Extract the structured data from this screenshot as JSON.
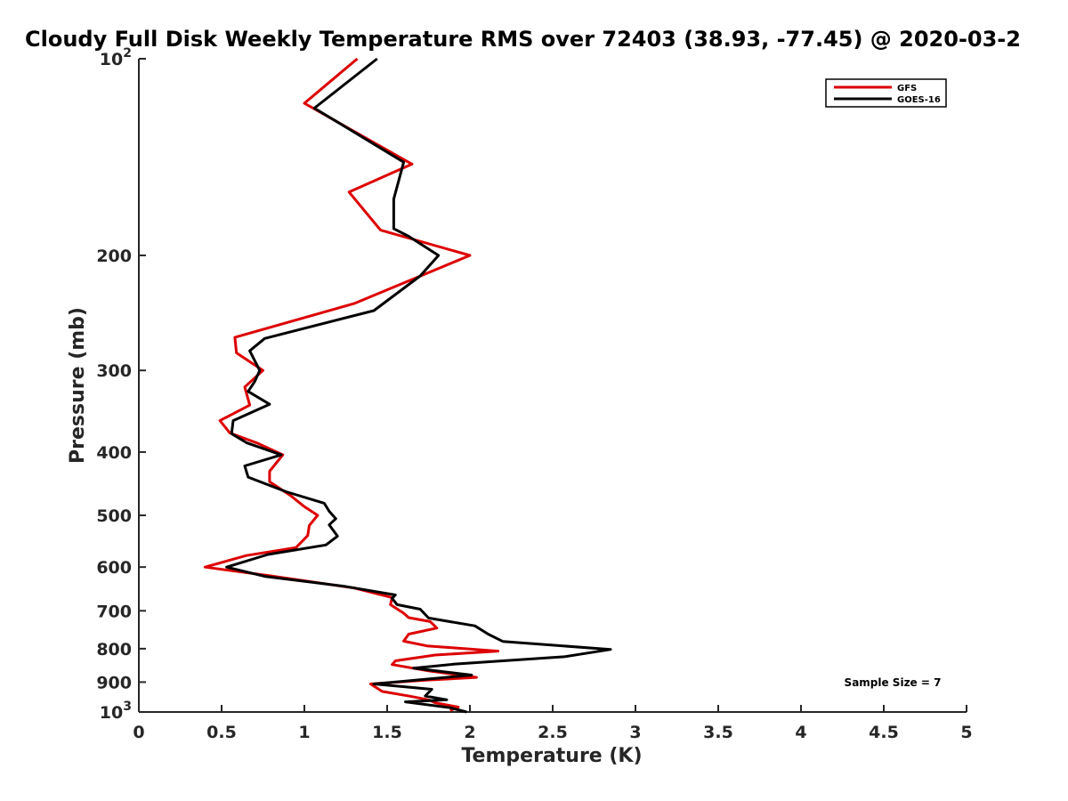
{
  "chart_data": {
    "type": "line",
    "title": "Cloudy Full Disk Weekly Temperature RMS over 72403 (38.93, -77.45) @ 2020-03-2",
    "xlabel": "Temperature (K)",
    "ylabel": "Pressure (mb)",
    "xlim": [
      0,
      5
    ],
    "ylim": [
      100,
      1000
    ],
    "y_scale": "log",
    "y_reversed": true,
    "x_ticks": [
      0,
      0.5,
      1,
      1.5,
      2,
      2.5,
      3,
      3.5,
      4,
      4.5,
      5
    ],
    "x_tick_labels": [
      "0",
      "0.5",
      "1",
      "1.5",
      "2",
      "2.5",
      "3",
      "3.5",
      "4",
      "4.5",
      "5"
    ],
    "y_ticks": [
      100,
      200,
      300,
      400,
      500,
      600,
      700,
      800,
      900,
      1000
    ],
    "y_tick_labels": [
      {
        "base": "10",
        "exp": "2"
      },
      {
        "base": "200",
        "exp": ""
      },
      {
        "base": "300",
        "exp": ""
      },
      {
        "base": "400",
        "exp": ""
      },
      {
        "base": "500",
        "exp": ""
      },
      {
        "base": "600",
        "exp": ""
      },
      {
        "base": "700",
        "exp": ""
      },
      {
        "base": "800",
        "exp": ""
      },
      {
        "base": "900",
        "exp": ""
      },
      {
        "base": "10",
        "exp": "3"
      }
    ],
    "grid": false,
    "legend_position": "top-right",
    "annotation": "Sample Size = 7",
    "series": [
      {
        "name": "GFS",
        "color": "#dd0000",
        "points": [
          [
            1.32,
            100
          ],
          [
            1.0,
            117
          ],
          [
            1.65,
            145
          ],
          [
            1.27,
            160
          ],
          [
            1.46,
            183
          ],
          [
            2.0,
            200
          ],
          [
            1.3,
            237
          ],
          [
            0.58,
            267
          ],
          [
            0.59,
            282
          ],
          [
            0.75,
            300
          ],
          [
            0.64,
            318
          ],
          [
            0.67,
            339
          ],
          [
            0.49,
            358
          ],
          [
            0.55,
            374
          ],
          [
            0.72,
            388
          ],
          [
            0.87,
            404
          ],
          [
            0.79,
            428
          ],
          [
            0.79,
            444
          ],
          [
            0.92,
            467
          ],
          [
            1.0,
            485
          ],
          [
            1.08,
            500
          ],
          [
            1.03,
            518
          ],
          [
            1.02,
            537
          ],
          [
            0.95,
            560
          ],
          [
            0.65,
            576
          ],
          [
            0.4,
            600
          ],
          [
            0.78,
            618
          ],
          [
            1.3,
            646
          ],
          [
            1.53,
            668
          ],
          [
            1.52,
            685
          ],
          [
            1.6,
            706
          ],
          [
            1.63,
            717
          ],
          [
            1.76,
            727
          ],
          [
            1.8,
            744
          ],
          [
            1.63,
            760
          ],
          [
            1.6,
            779
          ],
          [
            1.74,
            792
          ],
          [
            2.17,
            807
          ],
          [
            1.79,
            818
          ],
          [
            1.55,
            835
          ],
          [
            1.53,
            846
          ],
          [
            1.75,
            865
          ],
          [
            2.04,
            885
          ],
          [
            1.73,
            894
          ],
          [
            1.4,
            906
          ],
          [
            1.47,
            930
          ],
          [
            1.64,
            946
          ],
          [
            1.75,
            958
          ],
          [
            1.79,
            968
          ],
          [
            1.93,
            983
          ],
          [
            1.88,
            995
          ]
        ]
      },
      {
        "name": "GOES-16",
        "color": "#000000",
        "points": [
          [
            1.44,
            100
          ],
          [
            1.06,
            119
          ],
          [
            1.6,
            144
          ],
          [
            1.54,
            164
          ],
          [
            1.54,
            182
          ],
          [
            1.63,
            187
          ],
          [
            1.81,
            200
          ],
          [
            1.7,
            215
          ],
          [
            1.42,
            243
          ],
          [
            0.76,
            268
          ],
          [
            0.67,
            280
          ],
          [
            0.73,
            300
          ],
          [
            0.7,
            312
          ],
          [
            0.66,
            323
          ],
          [
            0.79,
            338
          ],
          [
            0.57,
            358
          ],
          [
            0.56,
            375
          ],
          [
            0.65,
            387
          ],
          [
            0.86,
            404
          ],
          [
            0.64,
            420
          ],
          [
            0.66,
            437
          ],
          [
            0.89,
            460
          ],
          [
            1.12,
            479
          ],
          [
            1.15,
            493
          ],
          [
            1.19,
            506
          ],
          [
            1.15,
            517
          ],
          [
            1.2,
            538
          ],
          [
            1.13,
            555
          ],
          [
            0.78,
            574
          ],
          [
            0.53,
            600
          ],
          [
            0.76,
            620
          ],
          [
            1.24,
            642
          ],
          [
            1.55,
            662
          ],
          [
            1.53,
            670
          ],
          [
            1.56,
            685
          ],
          [
            1.7,
            696
          ],
          [
            1.75,
            718
          ],
          [
            2.03,
            738
          ],
          [
            2.11,
            760
          ],
          [
            2.2,
            780
          ],
          [
            2.85,
            802
          ],
          [
            2.57,
            823
          ],
          [
            1.9,
            845
          ],
          [
            1.66,
            857
          ],
          [
            2.01,
            878
          ],
          [
            1.42,
            906
          ],
          [
            1.77,
            923
          ],
          [
            1.73,
            945
          ],
          [
            1.86,
            958
          ],
          [
            1.61,
            965
          ],
          [
            1.88,
            985
          ],
          [
            1.98,
            1000
          ]
        ]
      }
    ]
  }
}
